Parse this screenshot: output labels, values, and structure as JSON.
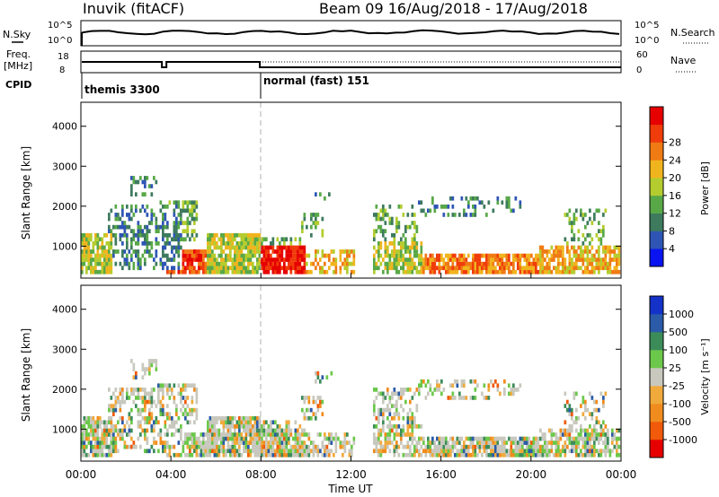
{
  "header": {
    "station": "Inuvik (fitACF)",
    "beam": "Beam 09  16/Aug/2018 - 17/Aug/2018"
  },
  "panels": {
    "nsky_label": "N.Sky",
    "nsky_top": "10^5",
    "nsky_bottom": "10^0",
    "nsearch_label": "N.Search",
    "nsearch_top": "10^5",
    "nsearch_bottom": "10^0",
    "freq_label_1": "Freq.",
    "freq_label_2": "[MHz]",
    "freq_top": "18",
    "freq_bottom": "8",
    "nave_label": "Nave",
    "nave_top": "60",
    "nave_bottom": "0",
    "cpid_label": "CPID",
    "cpid_1": "themis 3300",
    "cpid_2": "normal (fast) 151"
  },
  "colors": {
    "power": [
      "#0a14f0",
      "#2e55b5",
      "#3d7a5e",
      "#58a848",
      "#b4cc2e",
      "#f0b41e",
      "#f07a14",
      "#f03c0a",
      "#e60000"
    ],
    "velocity": [
      "#e60000",
      "#f05a0a",
      "#f08c1e",
      "#f0aa3c",
      "#c8c8be",
      "#6cc84a",
      "#3c8c5a",
      "#2a5aa8",
      "#1432c8"
    ],
    "ground": "#a0a0a0"
  },
  "chart_data": [
    {
      "type": "heatmap",
      "name": "power",
      "ylabel": "Slant Range [km]",
      "yticks": [
        "1000",
        "2000",
        "3000",
        "4000"
      ],
      "ytick_values": [
        1000,
        2000,
        3000,
        4000
      ],
      "ylim": [
        200,
        4600
      ],
      "xlim_hours": [
        0,
        24
      ],
      "colorbar_label": "Power [dB]",
      "colorbar_ticks": [
        "4",
        "8",
        "12",
        "16",
        "20",
        "24",
        "28"
      ],
      "colorbar_values": [
        4,
        8,
        12,
        16,
        20,
        24,
        28
      ],
      "colorbar_range": [
        0,
        32
      ]
    },
    {
      "type": "heatmap",
      "name": "velocity",
      "ylabel": "Slant Range [km]",
      "yticks": [
        "1000",
        "2000",
        "3000",
        "4000"
      ],
      "ytick_values": [
        1000,
        2000,
        3000,
        4000
      ],
      "ylim": [
        200,
        4600
      ],
      "xlim_hours": [
        0,
        24
      ],
      "xlabel": "Time UT",
      "xticks": [
        "00:00",
        "04:00",
        "08:00",
        "12:00",
        "16:00",
        "20:00",
        "00:00"
      ],
      "xtick_hours": [
        0,
        4,
        8,
        12,
        16,
        20,
        24
      ],
      "colorbar_label": "Velocity [m s⁻¹]",
      "colorbar_ticks": [
        "-1000",
        "-500",
        "-100",
        "-25",
        "25",
        "100",
        "500",
        "1000"
      ]
    }
  ]
}
